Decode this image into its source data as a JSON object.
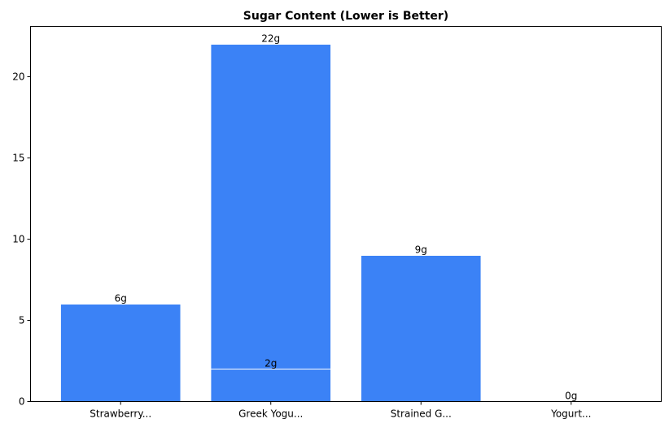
{
  "chart_data": {
    "type": "bar",
    "title": "Sugar Content (Lower is Better)",
    "xlabel": "",
    "ylabel": "",
    "categories": [
      "Strawberry...",
      "Greek Yogu...",
      "Strained G...",
      "Yogurt..."
    ],
    "bars": [
      {
        "category": "Strawberry...",
        "value": 6,
        "label": "6g"
      },
      {
        "category": "Greek Yogu...",
        "value": 22,
        "label": "22g"
      },
      {
        "category": "Greek Yogu...",
        "value": 2,
        "label": "2g"
      },
      {
        "category": "Strained G...",
        "value": 9,
        "label": "9g"
      },
      {
        "category": "Yogurt...",
        "value": 0,
        "label": "0g"
      }
    ],
    "ylim": [
      0,
      23.1
    ],
    "yticks": [
      0,
      5,
      10,
      15,
      20
    ],
    "grid": false,
    "colors": {
      "bar": "#3b82f6",
      "bar_edge": "#ffffff"
    }
  }
}
